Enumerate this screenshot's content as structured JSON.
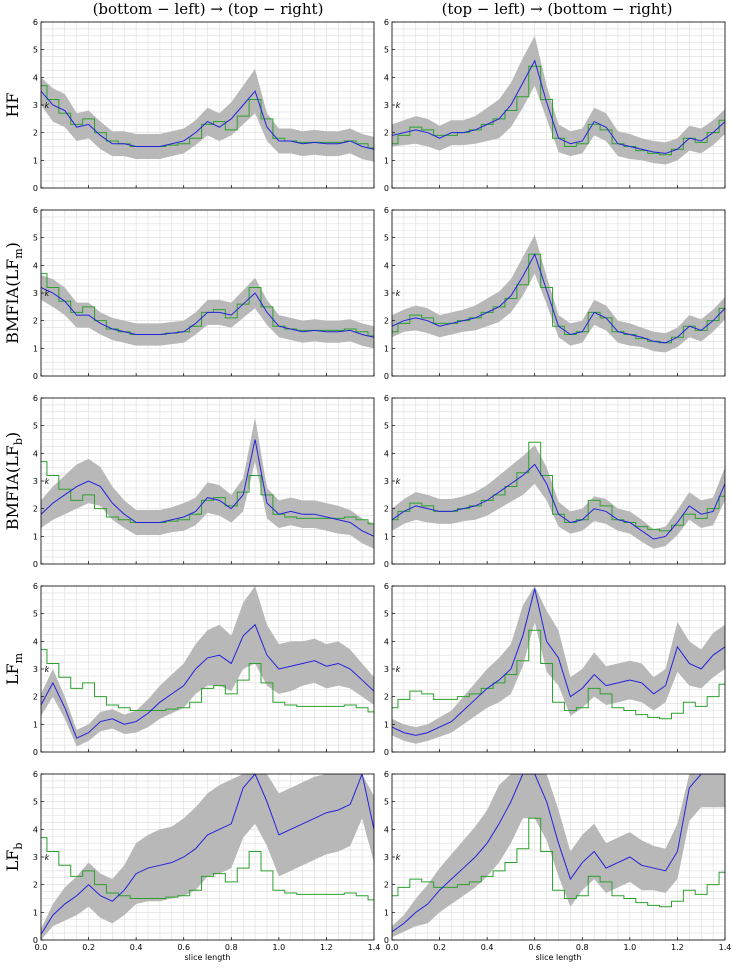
{
  "column_titles": [
    "(bottom − left) → (top − right)",
    "(top − left) → (bottom − right)"
  ],
  "row_labels": [
    "HF",
    "BMFIA(LF_m)",
    "BMFIA(LF_b)",
    "LF_m",
    "LF_b"
  ],
  "colors": {
    "estimate": "#2222dd",
    "reference": "#2ca02c",
    "band": "#b8b8b8",
    "grid": "#dcdcdc"
  },
  "chart_data": {
    "type": "line",
    "xlabel": "slice length",
    "ylabel": "k",
    "xlim": [
      0,
      1.4
    ],
    "ylim": [
      0,
      6
    ],
    "xticks": [
      "0.0",
      "0.2",
      "0.4",
      "0.6",
      "0.8",
      "1.0",
      "1.2",
      "1.4"
    ],
    "yticks": [
      "0",
      "1",
      "2",
      "3",
      "4",
      "5",
      "6"
    ],
    "grid": true,
    "x": [
      0,
      0.05,
      0.1,
      0.15,
      0.2,
      0.25,
      0.3,
      0.35,
      0.4,
      0.45,
      0.5,
      0.55,
      0.6,
      0.65,
      0.7,
      0.75,
      0.8,
      0.85,
      0.9,
      0.95,
      1.0,
      1.05,
      1.1,
      1.15,
      1.2,
      1.25,
      1.3,
      1.35,
      1.4
    ],
    "reference": {
      "col0": [
        3.7,
        3.2,
        2.7,
        2.3,
        2.5,
        2.0,
        1.7,
        1.6,
        1.5,
        1.5,
        1.5,
        1.55,
        1.6,
        1.8,
        2.3,
        2.4,
        2.1,
        2.6,
        3.2,
        2.5,
        1.8,
        1.7,
        1.65,
        1.65,
        1.65,
        1.65,
        1.7,
        1.6,
        1.45
      ],
      "col1": [
        1.6,
        1.9,
        2.2,
        2.1,
        1.9,
        1.9,
        2.0,
        2.1,
        2.3,
        2.5,
        2.8,
        3.3,
        4.4,
        3.2,
        1.8,
        1.5,
        1.6,
        2.3,
        2.1,
        1.6,
        1.5,
        1.35,
        1.25,
        1.2,
        1.4,
        1.8,
        1.65,
        2.0,
        2.45
      ]
    },
    "panels": [
      {
        "row": "HF",
        "column": 0,
        "mean": [
          3.5,
          3.0,
          2.8,
          2.2,
          2.3,
          1.9,
          1.6,
          1.6,
          1.5,
          1.5,
          1.5,
          1.6,
          1.7,
          2.0,
          2.4,
          2.2,
          2.5,
          3.0,
          3.5,
          2.2,
          1.7,
          1.7,
          1.6,
          1.65,
          1.6,
          1.6,
          1.7,
          1.5,
          1.4
        ],
        "band": [
          0.5,
          0.6,
          0.6,
          0.5,
          0.5,
          0.5,
          0.45,
          0.45,
          0.45,
          0.45,
          0.45,
          0.45,
          0.45,
          0.45,
          0.5,
          0.5,
          0.6,
          0.7,
          0.8,
          0.5,
          0.45,
          0.45,
          0.45,
          0.45,
          0.45,
          0.45,
          0.45,
          0.45,
          0.45
        ]
      },
      {
        "row": "HF",
        "column": 1,
        "mean": [
          1.9,
          2.0,
          2.1,
          2.0,
          1.8,
          2.0,
          2.0,
          2.1,
          2.3,
          2.5,
          3.0,
          3.8,
          4.6,
          3.1,
          1.8,
          1.6,
          1.7,
          2.4,
          2.2,
          1.6,
          1.5,
          1.4,
          1.3,
          1.25,
          1.4,
          1.8,
          1.7,
          2.0,
          2.4
        ],
        "band": [
          0.4,
          0.45,
          0.5,
          0.5,
          0.45,
          0.45,
          0.45,
          0.5,
          0.6,
          0.7,
          0.8,
          0.9,
          0.9,
          0.6,
          0.5,
          0.45,
          0.45,
          0.5,
          0.5,
          0.45,
          0.45,
          0.4,
          0.4,
          0.4,
          0.4,
          0.45,
          0.45,
          0.45,
          0.45
        ]
      },
      {
        "row": "BMFIA(LF_m)",
        "column": 0,
        "mean": [
          3.2,
          3.0,
          2.7,
          2.2,
          2.2,
          1.9,
          1.7,
          1.6,
          1.5,
          1.5,
          1.5,
          1.55,
          1.6,
          1.9,
          2.3,
          2.3,
          2.2,
          2.6,
          3.0,
          2.3,
          1.8,
          1.7,
          1.6,
          1.65,
          1.6,
          1.6,
          1.65,
          1.5,
          1.4
        ],
        "band": [
          0.45,
          0.5,
          0.5,
          0.45,
          0.45,
          0.4,
          0.4,
          0.4,
          0.4,
          0.4,
          0.4,
          0.4,
          0.4,
          0.4,
          0.45,
          0.45,
          0.45,
          0.5,
          0.55,
          0.45,
          0.4,
          0.4,
          0.4,
          0.4,
          0.4,
          0.4,
          0.4,
          0.4,
          0.4
        ]
      },
      {
        "row": "BMFIA(LF_m)",
        "column": 1,
        "mean": [
          1.8,
          2.0,
          2.1,
          2.0,
          1.8,
          1.9,
          2.0,
          2.1,
          2.3,
          2.5,
          2.9,
          3.6,
          4.4,
          3.1,
          1.8,
          1.5,
          1.6,
          2.3,
          2.1,
          1.6,
          1.5,
          1.4,
          1.25,
          1.2,
          1.4,
          1.8,
          1.65,
          2.0,
          2.45
        ],
        "band": [
          0.4,
          0.4,
          0.45,
          0.45,
          0.4,
          0.4,
          0.4,
          0.45,
          0.5,
          0.55,
          0.6,
          0.7,
          0.7,
          0.5,
          0.4,
          0.4,
          0.4,
          0.45,
          0.45,
          0.4,
          0.4,
          0.35,
          0.35,
          0.35,
          0.35,
          0.4,
          0.4,
          0.4,
          0.4
        ]
      },
      {
        "row": "BMFIA(LF_b)",
        "column": 0,
        "mean": [
          1.8,
          2.2,
          2.5,
          2.8,
          3.0,
          2.8,
          2.2,
          1.8,
          1.5,
          1.5,
          1.5,
          1.6,
          1.7,
          1.9,
          2.4,
          2.3,
          2.0,
          2.5,
          4.5,
          2.2,
          1.8,
          1.9,
          1.8,
          1.8,
          1.7,
          1.6,
          1.5,
          1.2,
          1.0
        ],
        "band": [
          0.5,
          0.6,
          0.7,
          0.8,
          0.8,
          0.7,
          0.6,
          0.5,
          0.45,
          0.45,
          0.45,
          0.45,
          0.5,
          0.5,
          0.55,
          0.55,
          0.5,
          0.6,
          0.8,
          0.55,
          0.5,
          0.5,
          0.5,
          0.5,
          0.5,
          0.5,
          0.45,
          0.45,
          0.45
        ]
      },
      {
        "row": "BMFIA(LF_b)",
        "column": 1,
        "mean": [
          1.6,
          1.9,
          2.1,
          2.0,
          1.9,
          1.9,
          2.0,
          2.1,
          2.3,
          2.6,
          2.9,
          3.2,
          3.6,
          2.9,
          1.8,
          1.5,
          1.6,
          2.0,
          1.9,
          1.6,
          1.5,
          1.2,
          0.9,
          1.0,
          1.5,
          2.1,
          1.8,
          1.9,
          2.9
        ],
        "band": [
          0.4,
          0.45,
          0.5,
          0.5,
          0.45,
          0.45,
          0.45,
          0.5,
          0.55,
          0.6,
          0.65,
          0.7,
          0.7,
          0.6,
          0.45,
          0.4,
          0.4,
          0.45,
          0.45,
          0.4,
          0.4,
          0.4,
          0.35,
          0.35,
          0.45,
          0.5,
          0.5,
          0.5,
          0.6
        ]
      },
      {
        "row": "LF_m",
        "column": 0,
        "mean": [
          1.7,
          2.5,
          1.6,
          0.5,
          0.7,
          1.1,
          1.2,
          1.0,
          1.1,
          1.4,
          1.8,
          2.1,
          2.4,
          3.0,
          3.4,
          3.5,
          3.2,
          4.2,
          4.6,
          3.5,
          3.0,
          3.1,
          3.2,
          3.3,
          3.1,
          3.2,
          3.0,
          2.6,
          2.2
        ],
        "band": [
          0.4,
          0.5,
          0.4,
          0.3,
          0.3,
          0.35,
          0.35,
          0.35,
          0.4,
          0.5,
          0.6,
          0.7,
          0.8,
          0.9,
          1.0,
          1.1,
          1.0,
          1.2,
          1.4,
          1.1,
          0.9,
          0.9,
          0.8,
          0.8,
          0.8,
          0.8,
          0.7,
          0.6,
          0.5
        ]
      },
      {
        "row": "LF_m",
        "column": 1,
        "mean": [
          0.9,
          0.7,
          0.6,
          0.7,
          0.9,
          1.1,
          1.5,
          1.9,
          2.3,
          2.6,
          3.0,
          4.2,
          5.9,
          4.0,
          3.4,
          2.0,
          2.3,
          2.8,
          2.4,
          2.5,
          2.6,
          2.5,
          2.1,
          2.4,
          3.8,
          3.2,
          3.0,
          3.5,
          3.8
        ],
        "band": [
          0.3,
          0.3,
          0.3,
          0.3,
          0.35,
          0.4,
          0.5,
          0.6,
          0.7,
          0.8,
          0.9,
          1.1,
          1.2,
          1.1,
          1.0,
          0.7,
          0.7,
          0.8,
          0.7,
          0.7,
          0.7,
          0.7,
          0.6,
          0.6,
          0.9,
          0.8,
          0.7,
          0.8,
          0.8
        ]
      },
      {
        "row": "LF_b",
        "column": 0,
        "mean": [
          0.2,
          0.9,
          1.3,
          1.6,
          2.0,
          1.6,
          1.4,
          1.8,
          2.4,
          2.6,
          2.7,
          2.8,
          3.0,
          3.3,
          3.8,
          4.0,
          4.2,
          5.5,
          6.0,
          5.0,
          3.8,
          4.0,
          4.2,
          4.4,
          4.6,
          4.7,
          4.9,
          6.0,
          4.0
        ],
        "band": [
          0.2,
          0.4,
          0.6,
          0.7,
          0.8,
          0.8,
          0.8,
          0.9,
          1.1,
          1.2,
          1.3,
          1.3,
          1.4,
          1.5,
          1.5,
          1.6,
          1.6,
          1.8,
          1.8,
          1.6,
          1.5,
          1.5,
          1.5,
          1.5,
          1.5,
          1.5,
          1.5,
          1.6,
          1.2
        ]
      },
      {
        "row": "LF_b",
        "column": 1,
        "mean": [
          0.3,
          0.6,
          1.0,
          1.3,
          1.8,
          2.2,
          2.6,
          3.0,
          3.5,
          4.2,
          5.0,
          6.0,
          6.0,
          5.0,
          3.5,
          2.2,
          2.8,
          3.2,
          2.6,
          2.8,
          3.0,
          2.7,
          2.6,
          2.5,
          3.2,
          5.5,
          6.0,
          6.0,
          6.0
        ],
        "band": [
          0.2,
          0.3,
          0.5,
          0.7,
          0.8,
          0.9,
          1.0,
          1.1,
          1.2,
          1.4,
          1.5,
          1.6,
          1.6,
          1.4,
          1.2,
          1.0,
          1.0,
          1.0,
          0.9,
          0.9,
          0.9,
          0.9,
          0.8,
          0.8,
          1.0,
          1.2,
          1.2,
          1.2,
          1.2
        ]
      }
    ]
  }
}
